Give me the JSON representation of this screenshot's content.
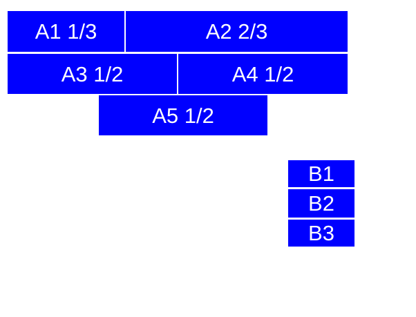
{
  "colors": {
    "box_fill": "#0000ff",
    "box_text": "#ffffff",
    "background": "#ffffff"
  },
  "boxes": {
    "a1": {
      "label": "A1 1/3"
    },
    "a2": {
      "label": "A2 2/3"
    },
    "a3": {
      "label": "A3 1/2"
    },
    "a4": {
      "label": "A4 1/2"
    },
    "a5": {
      "label": "A5 1/2"
    },
    "b1": {
      "label": "B1"
    },
    "b2": {
      "label": "B2"
    },
    "b3": {
      "label": "B3"
    }
  }
}
